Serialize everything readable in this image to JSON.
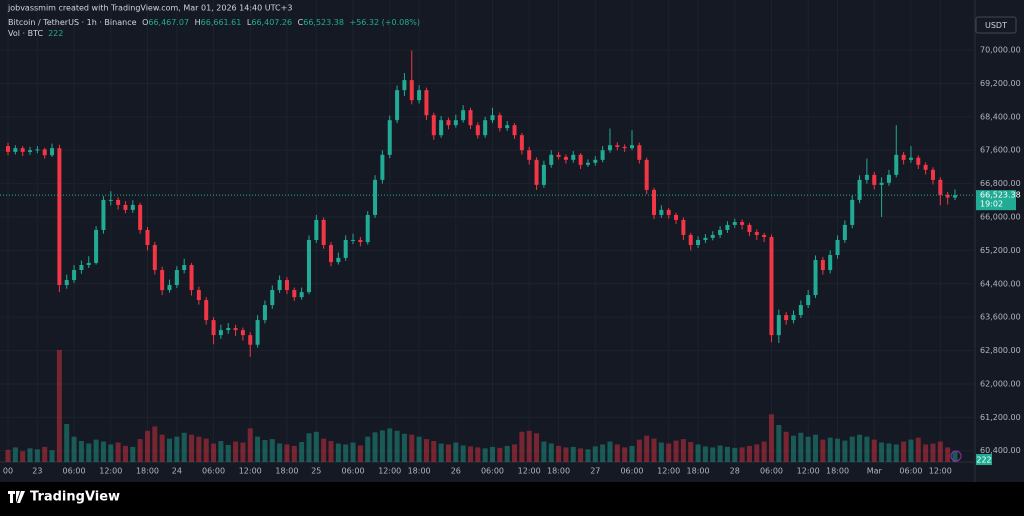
{
  "header": {
    "credit": "jobvassmim created with TradingView.com, Mar 01, 2026 14:40 UTC+3",
    "symbol": "Bitcoin / TetherUS · 1h · Binance",
    "o": "O",
    "open": "66,467.07",
    "h": "H",
    "high": "66,661.61",
    "l": "L",
    "low": "66,407.26",
    "c": "C",
    "close": "66,523.38",
    "change": "+56.32 (+0.08%)",
    "vol_label": "Vol · BTC",
    "vol": "222",
    "currency": "USDT",
    "price_label": "66,523.38",
    "countdown": "19:02"
  },
  "chart_data": {
    "type": "candlestick",
    "up_color": "#22ab94",
    "down_color": "#f23645",
    "grid": true,
    "ylim": [
      60130,
      70960
    ],
    "yticks": [
      {
        "value": 70000,
        "label": "70,000.00"
      },
      {
        "value": 69200,
        "label": "69,200.00"
      },
      {
        "value": 68400,
        "label": "68,400.00"
      },
      {
        "value": 67600,
        "label": "67,600.00"
      },
      {
        "value": 66800,
        "label": "66,800.00"
      },
      {
        "value": 66000,
        "label": "66,000.00"
      },
      {
        "value": 65200,
        "label": "65,200.00"
      },
      {
        "value": 64400,
        "label": "64,400.00"
      },
      {
        "value": 63600,
        "label": "63,600.00"
      },
      {
        "value": 62800,
        "label": "62,800.00"
      },
      {
        "value": 62000,
        "label": "62,000.00"
      },
      {
        "value": 61200,
        "label": "61,200.00"
      },
      {
        "value": 60400,
        "label": "60,400.00"
      }
    ],
    "categories": [
      "00",
      null,
      null,
      null,
      "23",
      null,
      null,
      null,
      null,
      "06:00",
      null,
      null,
      null,
      null,
      "12:00",
      null,
      null,
      null,
      null,
      "18:00",
      null,
      null,
      null,
      "24",
      null,
      null,
      null,
      null,
      "06:00",
      null,
      null,
      null,
      null,
      "12:00",
      null,
      null,
      null,
      null,
      "18:00",
      null,
      null,
      null,
      "25",
      null,
      null,
      null,
      null,
      "06:00",
      null,
      null,
      null,
      null,
      "12:00",
      null,
      null,
      null,
      "18:00",
      null,
      null,
      null,
      null,
      "26",
      null,
      null,
      null,
      null,
      "06:00",
      null,
      null,
      null,
      null,
      "12:00",
      null,
      null,
      null,
      "18:00",
      null,
      null,
      null,
      null,
      "27",
      null,
      null,
      null,
      null,
      "06:00",
      null,
      null,
      null,
      null,
      "12:00",
      null,
      null,
      null,
      "18:00",
      null,
      null,
      null,
      null,
      "28",
      null,
      null,
      null,
      null,
      "06:00",
      null,
      null,
      null,
      null,
      "12:00",
      null,
      null,
      null,
      "18:00",
      null,
      null,
      null,
      null,
      "Mar",
      null,
      null,
      null,
      null,
      "06:00",
      null,
      null,
      null,
      "12:00",
      null,
      null
    ],
    "ohlc": [
      [
        67700,
        67780,
        67480,
        67560
      ],
      [
        67560,
        67720,
        67500,
        67650
      ],
      [
        67650,
        67700,
        67460,
        67560
      ],
      [
        67560,
        67680,
        67490,
        67600
      ],
      [
        67600,
        67700,
        67530,
        67620
      ],
      [
        67620,
        67660,
        67400,
        67480
      ],
      [
        67480,
        67760,
        67440,
        67650
      ],
      [
        67650,
        67730,
        64200,
        64370
      ],
      [
        64370,
        64620,
        64280,
        64490
      ],
      [
        64490,
        64850,
        64420,
        64730
      ],
      [
        64730,
        64960,
        64640,
        64850
      ],
      [
        64850,
        65060,
        64780,
        64900
      ],
      [
        64900,
        65780,
        64860,
        65690
      ],
      [
        65690,
        66500,
        65600,
        66410
      ],
      [
        66410,
        66620,
        66280,
        66410
      ],
      [
        66410,
        66470,
        66180,
        66290
      ],
      [
        66290,
        66380,
        66090,
        66170
      ],
      [
        66170,
        66400,
        66100,
        66290
      ],
      [
        66290,
        66340,
        65600,
        65690
      ],
      [
        65690,
        65760,
        65200,
        65330
      ],
      [
        65330,
        65400,
        64620,
        64730
      ],
      [
        64730,
        64810,
        64130,
        64250
      ],
      [
        64250,
        64500,
        64190,
        64370
      ],
      [
        64370,
        64820,
        64300,
        64730
      ],
      [
        64730,
        65000,
        64650,
        64850
      ],
      [
        64850,
        64900,
        64120,
        64250
      ],
      [
        64250,
        64330,
        63900,
        64010
      ],
      [
        64010,
        64080,
        63420,
        63530
      ],
      [
        63530,
        63600,
        62950,
        63170
      ],
      [
        63170,
        63420,
        63080,
        63290
      ],
      [
        63290,
        63460,
        63200,
        63340
      ],
      [
        63340,
        63420,
        63150,
        63290
      ],
      [
        63290,
        63350,
        63040,
        63170
      ],
      [
        63170,
        63240,
        62650,
        62940
      ],
      [
        62940,
        63650,
        62870,
        63530
      ],
      [
        63530,
        64000,
        63450,
        63890
      ],
      [
        63890,
        64360,
        63800,
        64250
      ],
      [
        64250,
        64600,
        64180,
        64490
      ],
      [
        64490,
        64560,
        64150,
        64250
      ],
      [
        64250,
        64310,
        63990,
        64080
      ],
      [
        64080,
        64310,
        64020,
        64200
      ],
      [
        64200,
        65560,
        64150,
        65450
      ],
      [
        65450,
        66050,
        65380,
        65930
      ],
      [
        65930,
        65990,
        65240,
        65330
      ],
      [
        65330,
        65400,
        64820,
        64920
      ],
      [
        64920,
        65150,
        64860,
        65020
      ],
      [
        65020,
        65560,
        64950,
        65450
      ],
      [
        65450,
        65600,
        65350,
        65450
      ],
      [
        65450,
        65520,
        65300,
        65400
      ],
      [
        65400,
        66140,
        65340,
        66050
      ],
      [
        66050,
        67000,
        65980,
        66890
      ],
      [
        66890,
        67600,
        66800,
        67490
      ],
      [
        67490,
        68430,
        67410,
        68320
      ],
      [
        68320,
        69150,
        68250,
        69040
      ],
      [
        69040,
        69450,
        68900,
        69280
      ],
      [
        69280,
        69990,
        68700,
        68800
      ],
      [
        68800,
        69160,
        68720,
        69040
      ],
      [
        69040,
        69100,
        68320,
        68440
      ],
      [
        68440,
        68500,
        67850,
        67960
      ],
      [
        67960,
        68420,
        67900,
        68320
      ],
      [
        68320,
        68380,
        68100,
        68200
      ],
      [
        68200,
        68450,
        68140,
        68320
      ],
      [
        68320,
        68680,
        68260,
        68560
      ],
      [
        68560,
        68620,
        68110,
        68200
      ],
      [
        68200,
        68270,
        67880,
        67960
      ],
      [
        67960,
        68400,
        67900,
        68320
      ],
      [
        68320,
        68620,
        68250,
        68440
      ],
      [
        68440,
        68500,
        68050,
        68130
      ],
      [
        68130,
        68300,
        68060,
        68200
      ],
      [
        68200,
        68250,
        67870,
        67960
      ],
      [
        67960,
        68010,
        67500,
        67600
      ],
      [
        67600,
        67680,
        67260,
        67370
      ],
      [
        67370,
        67430,
        66650,
        66770
      ],
      [
        66770,
        67350,
        66700,
        67250
      ],
      [
        67250,
        67600,
        67180,
        67490
      ],
      [
        67490,
        67560,
        67380,
        67440
      ],
      [
        67440,
        67500,
        67280,
        67370
      ],
      [
        67370,
        67580,
        67300,
        67490
      ],
      [
        67490,
        67530,
        67150,
        67250
      ],
      [
        67250,
        67380,
        67200,
        67300
      ],
      [
        67300,
        67460,
        67230,
        67370
      ],
      [
        67370,
        67700,
        67310,
        67600
      ],
      [
        67600,
        68120,
        67540,
        67720
      ],
      [
        67720,
        67790,
        67600,
        67680
      ],
      [
        67680,
        67740,
        67560,
        67650
      ],
      [
        67650,
        68080,
        67600,
        67720
      ],
      [
        67720,
        67780,
        67280,
        67370
      ],
      [
        67370,
        67420,
        66550,
        66650
      ],
      [
        66650,
        66700,
        65950,
        66050
      ],
      [
        66050,
        66280,
        65980,
        66170
      ],
      [
        66170,
        66220,
        65960,
        66050
      ],
      [
        66050,
        66100,
        65830,
        65930
      ],
      [
        65930,
        65990,
        65450,
        65570
      ],
      [
        65570,
        65620,
        65200,
        65330
      ],
      [
        65330,
        65540,
        65260,
        65450
      ],
      [
        65450,
        65590,
        65380,
        65500
      ],
      [
        65500,
        65660,
        65440,
        65570
      ],
      [
        65570,
        65780,
        65500,
        65690
      ],
      [
        65690,
        65900,
        65620,
        65810
      ],
      [
        65810,
        65960,
        65740,
        65880
      ],
      [
        65880,
        65940,
        65700,
        65810
      ],
      [
        65810,
        65860,
        65540,
        65640
      ],
      [
        65640,
        65700,
        65450,
        65570
      ],
      [
        65570,
        65620,
        65400,
        65520
      ],
      [
        65520,
        65580,
        63000,
        63170
      ],
      [
        63170,
        63780,
        62980,
        63650
      ],
      [
        63650,
        63720,
        63420,
        63530
      ],
      [
        63530,
        63760,
        63450,
        63650
      ],
      [
        63650,
        64000,
        63580,
        63890
      ],
      [
        63890,
        64250,
        63820,
        64130
      ],
      [
        64130,
        65080,
        64060,
        64970
      ],
      [
        64970,
        65040,
        64620,
        64730
      ],
      [
        64730,
        65200,
        64650,
        65090
      ],
      [
        65090,
        65560,
        65000,
        65450
      ],
      [
        65450,
        65920,
        65380,
        65810
      ],
      [
        65810,
        66520,
        65730,
        66410
      ],
      [
        66410,
        67000,
        66330,
        66890
      ],
      [
        66890,
        67400,
        66800,
        67010
      ],
      [
        67010,
        67080,
        66660,
        66770
      ],
      [
        66770,
        66950,
        66000,
        66820
      ],
      [
        66820,
        67130,
        66750,
        67010
      ],
      [
        67010,
        68200,
        66950,
        67490
      ],
      [
        67490,
        67560,
        67260,
        67370
      ],
      [
        67370,
        67700,
        67300,
        67420
      ],
      [
        67420,
        67480,
        67150,
        67250
      ],
      [
        67250,
        67310,
        67020,
        67130
      ],
      [
        67130,
        67190,
        66780,
        66890
      ],
      [
        66890,
        66950,
        66280,
        66530
      ],
      [
        66530,
        66600,
        66300,
        66467.07
      ],
      [
        66467.07,
        66661.61,
        66407.26,
        66523.38
      ]
    ],
    "volume": [
      250,
      300,
      220,
      280,
      260,
      310,
      240,
      2300,
      780,
      520,
      430,
      380,
      460,
      420,
      360,
      400,
      330,
      310,
      470,
      640,
      730,
      560,
      480,
      520,
      600,
      560,
      520,
      480,
      380,
      430,
      350,
      420,
      400,
      690,
      520,
      450,
      470,
      380,
      360,
      330,
      410,
      590,
      620,
      480,
      430,
      380,
      360,
      400,
      340,
      520,
      610,
      650,
      690,
      640,
      580,
      560,
      520,
      470,
      430,
      380,
      360,
      400,
      340,
      320,
      300,
      280,
      310,
      290,
      330,
      360,
      620,
      640,
      590,
      420,
      380,
      330,
      300,
      310,
      280,
      260,
      320,
      360,
      420,
      360,
      300,
      330,
      460,
      540,
      480,
      400,
      380,
      440,
      470,
      410,
      360,
      320,
      300,
      340,
      310,
      290,
      300,
      330,
      360,
      420,
      980,
      760,
      620,
      540,
      600,
      520,
      560,
      460,
      500,
      480,
      440,
      520,
      560,
      520,
      460,
      400,
      380,
      360,
      420,
      460,
      500,
      360,
      380,
      420,
      300,
      222
    ]
  },
  "footer": {
    "brand": "TradingView"
  }
}
